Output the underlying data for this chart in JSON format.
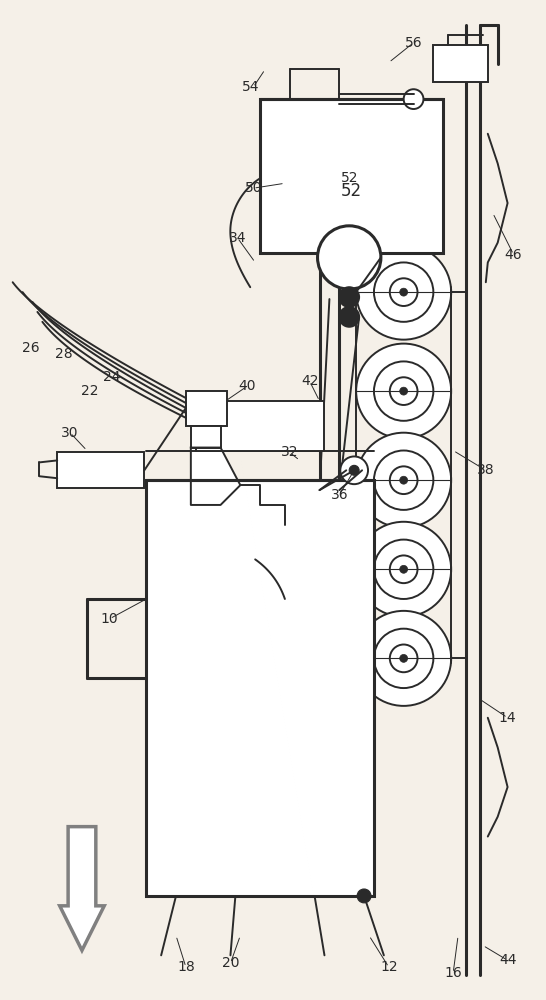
{
  "bg_color": "#f5f0e8",
  "line_color": "#2a2a2a",
  "lw": 1.4,
  "lw2": 2.2,
  "figsize": [
    5.46,
    10.0
  ],
  "dpi": 100
}
